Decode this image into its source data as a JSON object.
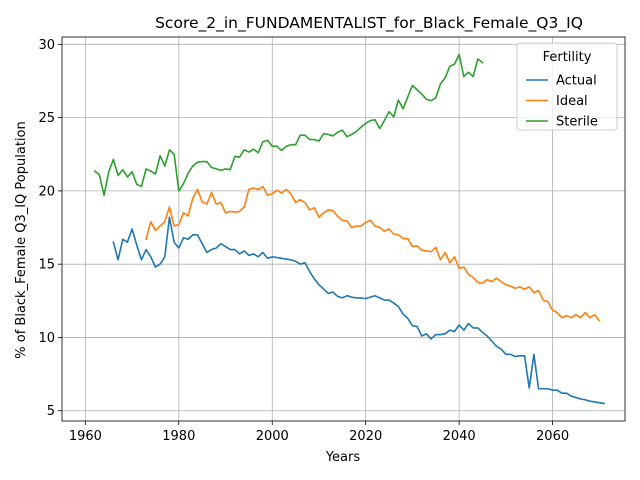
{
  "chart_data": {
    "type": "line",
    "title": "Score_2_in_FUNDAMENTALIST_for_Black_Female_Q3_IQ",
    "xlabel": "Years",
    "ylabel": "% of Black_Female Q3_IQ Population",
    "xlim": [
      1955,
      2075.5
    ],
    "ylim": [
      4.3,
      30.5
    ],
    "xticks": [
      1960,
      1980,
      2000,
      2020,
      2040,
      2060
    ],
    "yticks": [
      5,
      10,
      15,
      20,
      25,
      30
    ],
    "grid": true,
    "legend": {
      "title": "Fertility",
      "placement": "top-right"
    },
    "series": [
      {
        "name": "Actual",
        "color": "#1f77b4",
        "x_start": 1966,
        "values": [
          16.5,
          15.3,
          16.7,
          16.5,
          17.4,
          16.3,
          15.3,
          16.0,
          15.5,
          14.8,
          15.0,
          15.5,
          18.2,
          16.5,
          16.1,
          16.8,
          16.7,
          17.0,
          17.0,
          16.4,
          15.8,
          16.0,
          16.1,
          16.4,
          16.2,
          16.0,
          16.0,
          15.7,
          15.9,
          15.6,
          15.7,
          15.5,
          15.8,
          15.4,
          15.5,
          15.45,
          15.4,
          15.35,
          15.3,
          15.2,
          15.0,
          15.1,
          14.5,
          14.0,
          13.6,
          13.3,
          13.0,
          13.1,
          12.8,
          12.7,
          12.85,
          12.75,
          12.7,
          12.7,
          12.65,
          12.75,
          12.85,
          12.7,
          12.55,
          12.55,
          12.35,
          12.1,
          11.6,
          11.3,
          10.8,
          10.75,
          10.1,
          10.25,
          9.9,
          10.2,
          10.2,
          10.25,
          10.5,
          10.4,
          10.85,
          10.5,
          10.95,
          10.65,
          10.65,
          10.35,
          10.1,
          9.75,
          9.4,
          9.2,
          8.85,
          8.85,
          8.7,
          8.75,
          8.75,
          6.55,
          8.85,
          6.5,
          6.5,
          6.5,
          6.4,
          6.4,
          6.2,
          6.2,
          6.0,
          5.9,
          5.8,
          5.75,
          5.65,
          5.6,
          5.55,
          5.5
        ]
      },
      {
        "name": "Ideal",
        "color": "#ff7f0e",
        "x_start": 1973,
        "values": [
          16.7,
          17.9,
          17.3,
          17.6,
          17.9,
          18.9,
          17.6,
          17.7,
          18.5,
          18.3,
          19.5,
          20.1,
          19.25,
          19.1,
          19.9,
          19.1,
          19.2,
          18.5,
          18.6,
          18.55,
          18.6,
          18.9,
          20.1,
          20.2,
          20.1,
          20.3,
          19.7,
          19.8,
          20.05,
          19.85,
          20.1,
          19.8,
          19.2,
          19.4,
          19.2,
          18.7,
          18.85,
          18.2,
          18.5,
          18.7,
          18.65,
          18.25,
          18.0,
          17.95,
          17.5,
          17.6,
          17.6,
          17.85,
          18.0,
          17.6,
          17.5,
          17.25,
          17.4,
          17.05,
          17.0,
          16.75,
          16.75,
          16.2,
          16.25,
          15.95,
          15.9,
          15.85,
          16.15,
          15.3,
          15.8,
          15.1,
          15.5,
          14.7,
          14.8,
          14.3,
          14.1,
          13.75,
          13.7,
          13.95,
          13.8,
          14.05,
          13.8,
          13.6,
          13.5,
          13.35,
          13.45,
          13.3,
          13.45,
          13.05,
          13.2,
          12.55,
          12.45,
          11.85,
          11.7,
          11.35,
          11.5,
          11.35,
          11.55,
          11.35,
          11.7,
          11.35,
          11.55,
          11.15
        ]
      },
      {
        "name": "Sterile",
        "color": "#2ca02c",
        "x_start": 1962,
        "values": [
          21.35,
          21.1,
          19.7,
          21.3,
          22.15,
          21.05,
          21.45,
          20.95,
          21.3,
          20.45,
          20.3,
          21.5,
          21.35,
          21.15,
          22.4,
          21.7,
          22.8,
          22.5,
          20.0,
          20.5,
          21.2,
          21.7,
          21.95,
          22.0,
          22.0,
          21.6,
          21.5,
          21.4,
          21.5,
          21.45,
          22.35,
          22.3,
          22.8,
          22.65,
          22.85,
          22.6,
          23.35,
          23.45,
          23.05,
          23.05,
          22.75,
          23.05,
          23.15,
          23.15,
          23.8,
          23.8,
          23.5,
          23.5,
          23.4,
          23.9,
          23.85,
          23.75,
          24.0,
          24.15,
          23.7,
          23.85,
          24.05,
          24.35,
          24.6,
          24.8,
          24.85,
          24.25,
          24.8,
          25.4,
          25.05,
          26.2,
          25.6,
          26.4,
          27.2,
          26.9,
          26.6,
          26.25,
          26.15,
          26.35,
          27.3,
          27.7,
          28.5,
          28.65,
          29.3,
          27.8,
          28.1,
          27.8,
          29.0,
          28.75
        ]
      }
    ]
  }
}
